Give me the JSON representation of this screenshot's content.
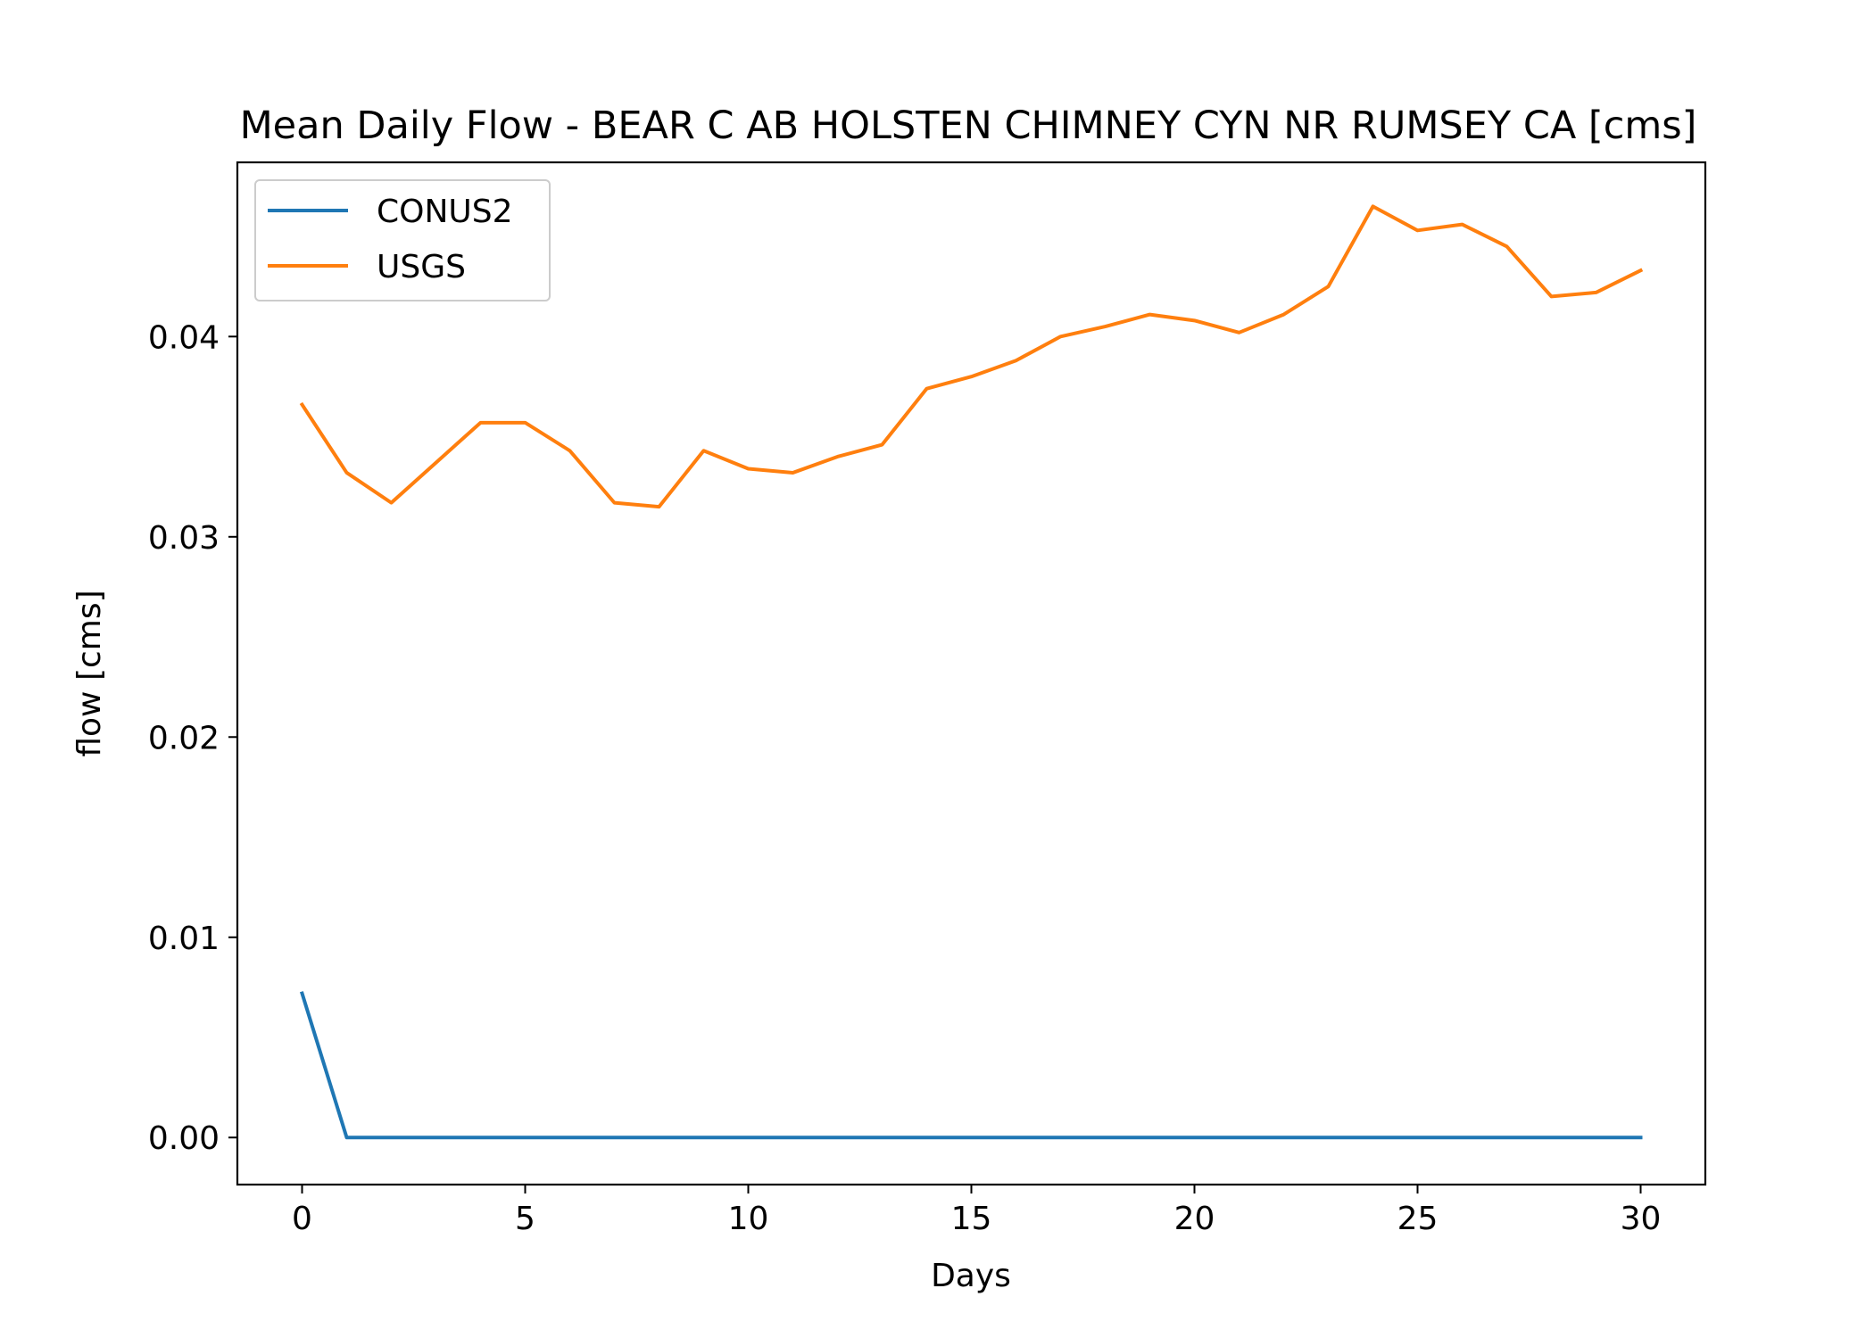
{
  "chart_data": {
    "type": "line",
    "title": "Mean Daily Flow - BEAR C AB HOLSTEN CHIMNEY CYN NR RUMSEY CA [cms]",
    "xlabel": "Days",
    "ylabel": "flow [cms]",
    "xlim": [
      -1.45,
      31.45
    ],
    "ylim": [
      -0.00235,
      0.0487
    ],
    "xticks": [
      0,
      5,
      10,
      15,
      20,
      25,
      30
    ],
    "xtick_labels": [
      "0",
      "5",
      "10",
      "15",
      "20",
      "25",
      "30"
    ],
    "yticks": [
      0.0,
      0.01,
      0.02,
      0.03,
      0.04
    ],
    "ytick_labels": [
      "0.00",
      "0.01",
      "0.02",
      "0.03",
      "0.04"
    ],
    "grid": false,
    "legend_position": "top-left",
    "x": [
      0,
      1,
      2,
      3,
      4,
      5,
      6,
      7,
      8,
      9,
      10,
      11,
      12,
      13,
      14,
      15,
      16,
      17,
      18,
      19,
      20,
      21,
      22,
      23,
      24,
      25,
      26,
      27,
      28,
      29,
      30
    ],
    "series": [
      {
        "name": "CONUS2",
        "color": "#1f77b4",
        "values": [
          0.0072,
          0,
          0,
          0,
          0,
          0,
          0,
          0,
          0,
          0,
          0,
          0,
          0,
          0,
          0,
          0,
          0,
          0,
          0,
          0,
          0,
          0,
          0,
          0,
          0,
          0,
          0,
          0,
          0,
          0,
          0
        ]
      },
      {
        "name": "USGS",
        "color": "#ff7f0e",
        "values": [
          0.0366,
          0.0332,
          0.0317,
          0.0337,
          0.0357,
          0.0357,
          0.0343,
          0.0317,
          0.0315,
          0.0343,
          0.0334,
          0.0332,
          0.034,
          0.0346,
          0.0374,
          0.038,
          0.0388,
          0.04,
          0.0405,
          0.0411,
          0.0408,
          0.0402,
          0.0411,
          0.0425,
          0.0465,
          0.0453,
          0.0456,
          0.0445,
          0.042,
          0.0422,
          0.0433
        ]
      }
    ]
  }
}
